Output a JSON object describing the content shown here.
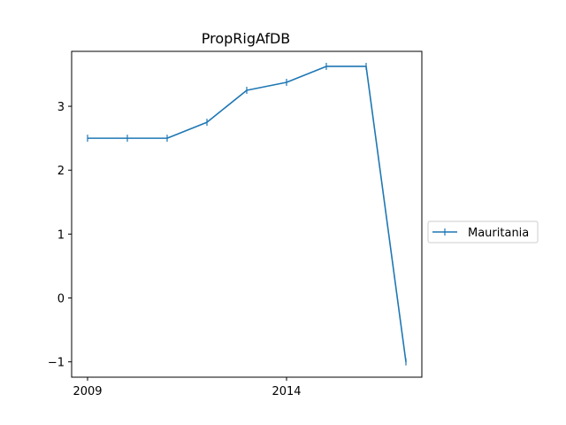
{
  "chart_data": {
    "type": "line",
    "title": "PropRigAfDB",
    "xlabel": "",
    "ylabel": "",
    "x": [
      2009,
      2010,
      2011,
      2012,
      2013,
      2014,
      2015,
      2016,
      2017
    ],
    "series": [
      {
        "name": "Mauritania",
        "values": [
          2.5,
          2.5,
          2.5,
          2.75,
          3.25,
          3.375,
          3.625,
          3.625,
          -1.0
        ],
        "color": "#1f77b4",
        "marker": "|"
      }
    ],
    "xlim": [
      2008.6,
      2017.4
    ],
    "ylim": [
      -1.24,
      3.86
    ],
    "xticks": [
      2009,
      2014
    ],
    "yticks": [
      -1,
      0,
      1,
      2,
      3
    ],
    "ytick_labels": [
      "−1",
      "0",
      "1",
      "2",
      "3"
    ],
    "grid": false,
    "legend_position": "outside-right"
  }
}
